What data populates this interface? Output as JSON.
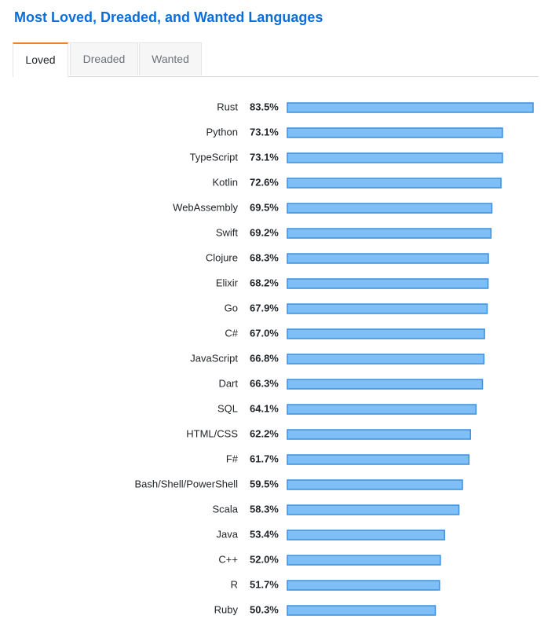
{
  "title": "Most Loved, Dreaded, and Wanted Languages",
  "tabs": [
    {
      "label": "Loved",
      "active": true
    },
    {
      "label": "Dreaded",
      "active": false
    },
    {
      "label": "Wanted",
      "active": false
    }
  ],
  "colors": {
    "bar_fill": "#7fbff8",
    "bar_stroke": "#3a8fe0",
    "title": "#0a6dd8",
    "active_tab_accent": "#f48024"
  },
  "chart_data": {
    "type": "bar",
    "orientation": "horizontal",
    "categories": [
      "Rust",
      "Python",
      "TypeScript",
      "Kotlin",
      "WebAssembly",
      "Swift",
      "Clojure",
      "Elixir",
      "Go",
      "C#",
      "JavaScript",
      "Dart",
      "SQL",
      "HTML/CSS",
      "F#",
      "Bash/Shell/PowerShell",
      "Scala",
      "Java",
      "C++",
      "R",
      "Ruby"
    ],
    "values": [
      83.5,
      73.1,
      73.1,
      72.6,
      69.5,
      69.2,
      68.3,
      68.2,
      67.9,
      67.0,
      66.8,
      66.3,
      64.1,
      62.2,
      61.7,
      59.5,
      58.3,
      53.4,
      52.0,
      51.7,
      50.3
    ],
    "value_labels": [
      "83.5%",
      "73.1%",
      "73.1%",
      "72.6%",
      "69.5%",
      "69.2%",
      "68.3%",
      "68.2%",
      "67.9%",
      "67.0%",
      "66.8%",
      "66.3%",
      "64.1%",
      "62.2%",
      "61.7%",
      "59.5%",
      "58.3%",
      "53.4%",
      "52.0%",
      "51.7%",
      "50.3%"
    ],
    "unit": "%",
    "xlim": [
      0,
      83.5
    ],
    "grid": false,
    "legend": "none"
  }
}
